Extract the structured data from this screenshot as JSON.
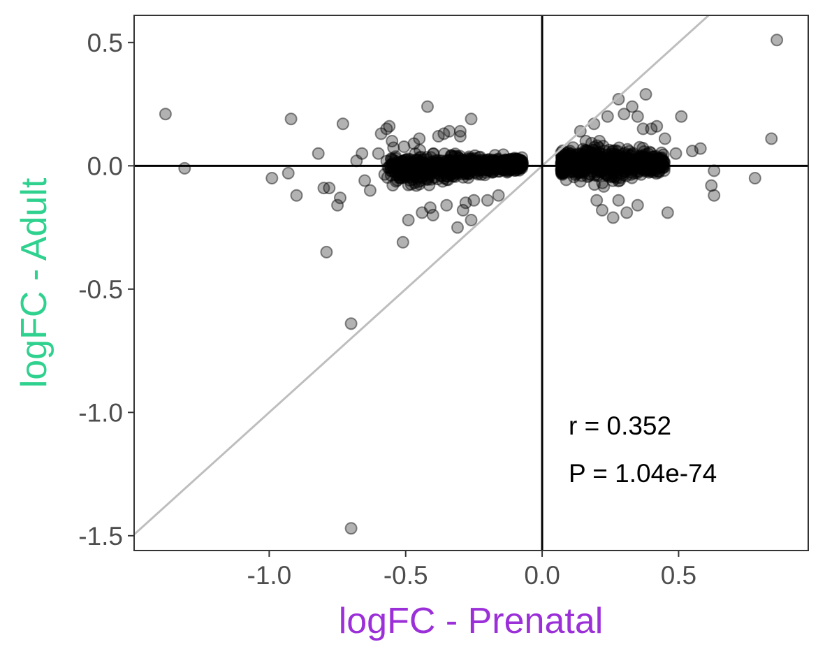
{
  "chart_data": {
    "type": "scatter",
    "title": "",
    "xlabel": "logFC - Prenatal",
    "ylabel": "logFC - Adult",
    "xlabel_color": "#9b30d9",
    "ylabel_color": "#2fd18e",
    "xlim": [
      -1.495,
      0.975
    ],
    "ylim": [
      -1.56,
      0.61
    ],
    "xticks": [
      -1.0,
      -0.5,
      0.0,
      0.5
    ],
    "xtick_labels": [
      "-1.0",
      "-0.5",
      "0.0",
      "0.5"
    ],
    "yticks": [
      0.5,
      0.0,
      -0.5,
      -1.0,
      -1.5
    ],
    "ytick_labels": [
      "0.5",
      "0.0",
      "-0.5",
      "-1.0",
      "-1.5"
    ],
    "grid": false,
    "legend": "none",
    "reference_lines": [
      {
        "kind": "horizontal",
        "value": 0,
        "color": "#000000"
      },
      {
        "kind": "vertical",
        "value": 0,
        "color": "#000000"
      },
      {
        "kind": "identity",
        "slope": 1,
        "intercept": 0,
        "color": "#bebebe"
      }
    ],
    "annotations": [
      "r = 0.352",
      "P = 1.04e-74"
    ],
    "point_color": "#000000",
    "point_alpha": 0.3,
    "series": [
      {
        "x": [
          -1.38,
          -1.31,
          -0.99,
          -0.92,
          -0.9,
          -0.93,
          -0.8,
          -0.82,
          -0.78,
          -0.79,
          -0.7,
          -0.7,
          -0.75,
          -0.74,
          -0.73,
          -0.63,
          -0.59,
          -0.57,
          -0.56,
          -0.51,
          -0.49,
          -0.47,
          -0.45,
          -0.44,
          -0.42,
          -0.41,
          -0.38,
          -0.36,
          -0.34,
          -0.31,
          -0.3,
          -0.29,
          -0.26,
          -0.26,
          -0.2,
          -0.16,
          -0.4,
          -0.35,
          -0.28,
          -0.25,
          -0.3,
          -0.55,
          -0.6,
          -0.66,
          -0.68,
          -0.65,
          -0.5,
          0.14,
          0.11,
          0.16,
          0.21,
          0.28,
          0.35,
          0.38,
          0.33,
          0.24,
          0.19,
          0.22,
          0.26,
          0.31,
          0.3,
          0.37,
          0.42,
          0.46,
          0.49,
          0.51,
          0.55,
          0.58,
          0.63,
          0.62,
          0.63,
          0.78,
          0.84,
          0.86,
          0.28,
          0.35,
          0.4,
          0.45,
          0.2
        ],
        "y": [
          0.21,
          -0.01,
          -0.05,
          0.19,
          -0.12,
          -0.03,
          -0.09,
          0.05,
          -0.09,
          -0.35,
          -0.64,
          -1.47,
          -0.16,
          -0.13,
          0.17,
          -0.1,
          0.13,
          0.15,
          0.16,
          -0.31,
          -0.22,
          0.09,
          0.11,
          -0.19,
          0.24,
          -0.17,
          0.12,
          0.13,
          0.14,
          -0.25,
          0.12,
          -0.18,
          0.19,
          -0.22,
          -0.14,
          -0.12,
          -0.2,
          -0.16,
          -0.15,
          -0.14,
          0.14,
          0.1,
          0.05,
          0.05,
          0.02,
          -0.06,
          -0.02,
          0.14,
          0.01,
          0.1,
          0.1,
          0.27,
          0.2,
          0.29,
          0.24,
          0.2,
          0.17,
          -0.18,
          -0.21,
          -0.19,
          0.21,
          0.15,
          0.16,
          -0.19,
          0.05,
          0.2,
          0.06,
          0.07,
          -0.02,
          -0.08,
          -0.12,
          -0.05,
          0.11,
          0.51,
          -0.14,
          -0.16,
          0.15,
          0.11,
          -0.14
        ]
      }
    ]
  }
}
